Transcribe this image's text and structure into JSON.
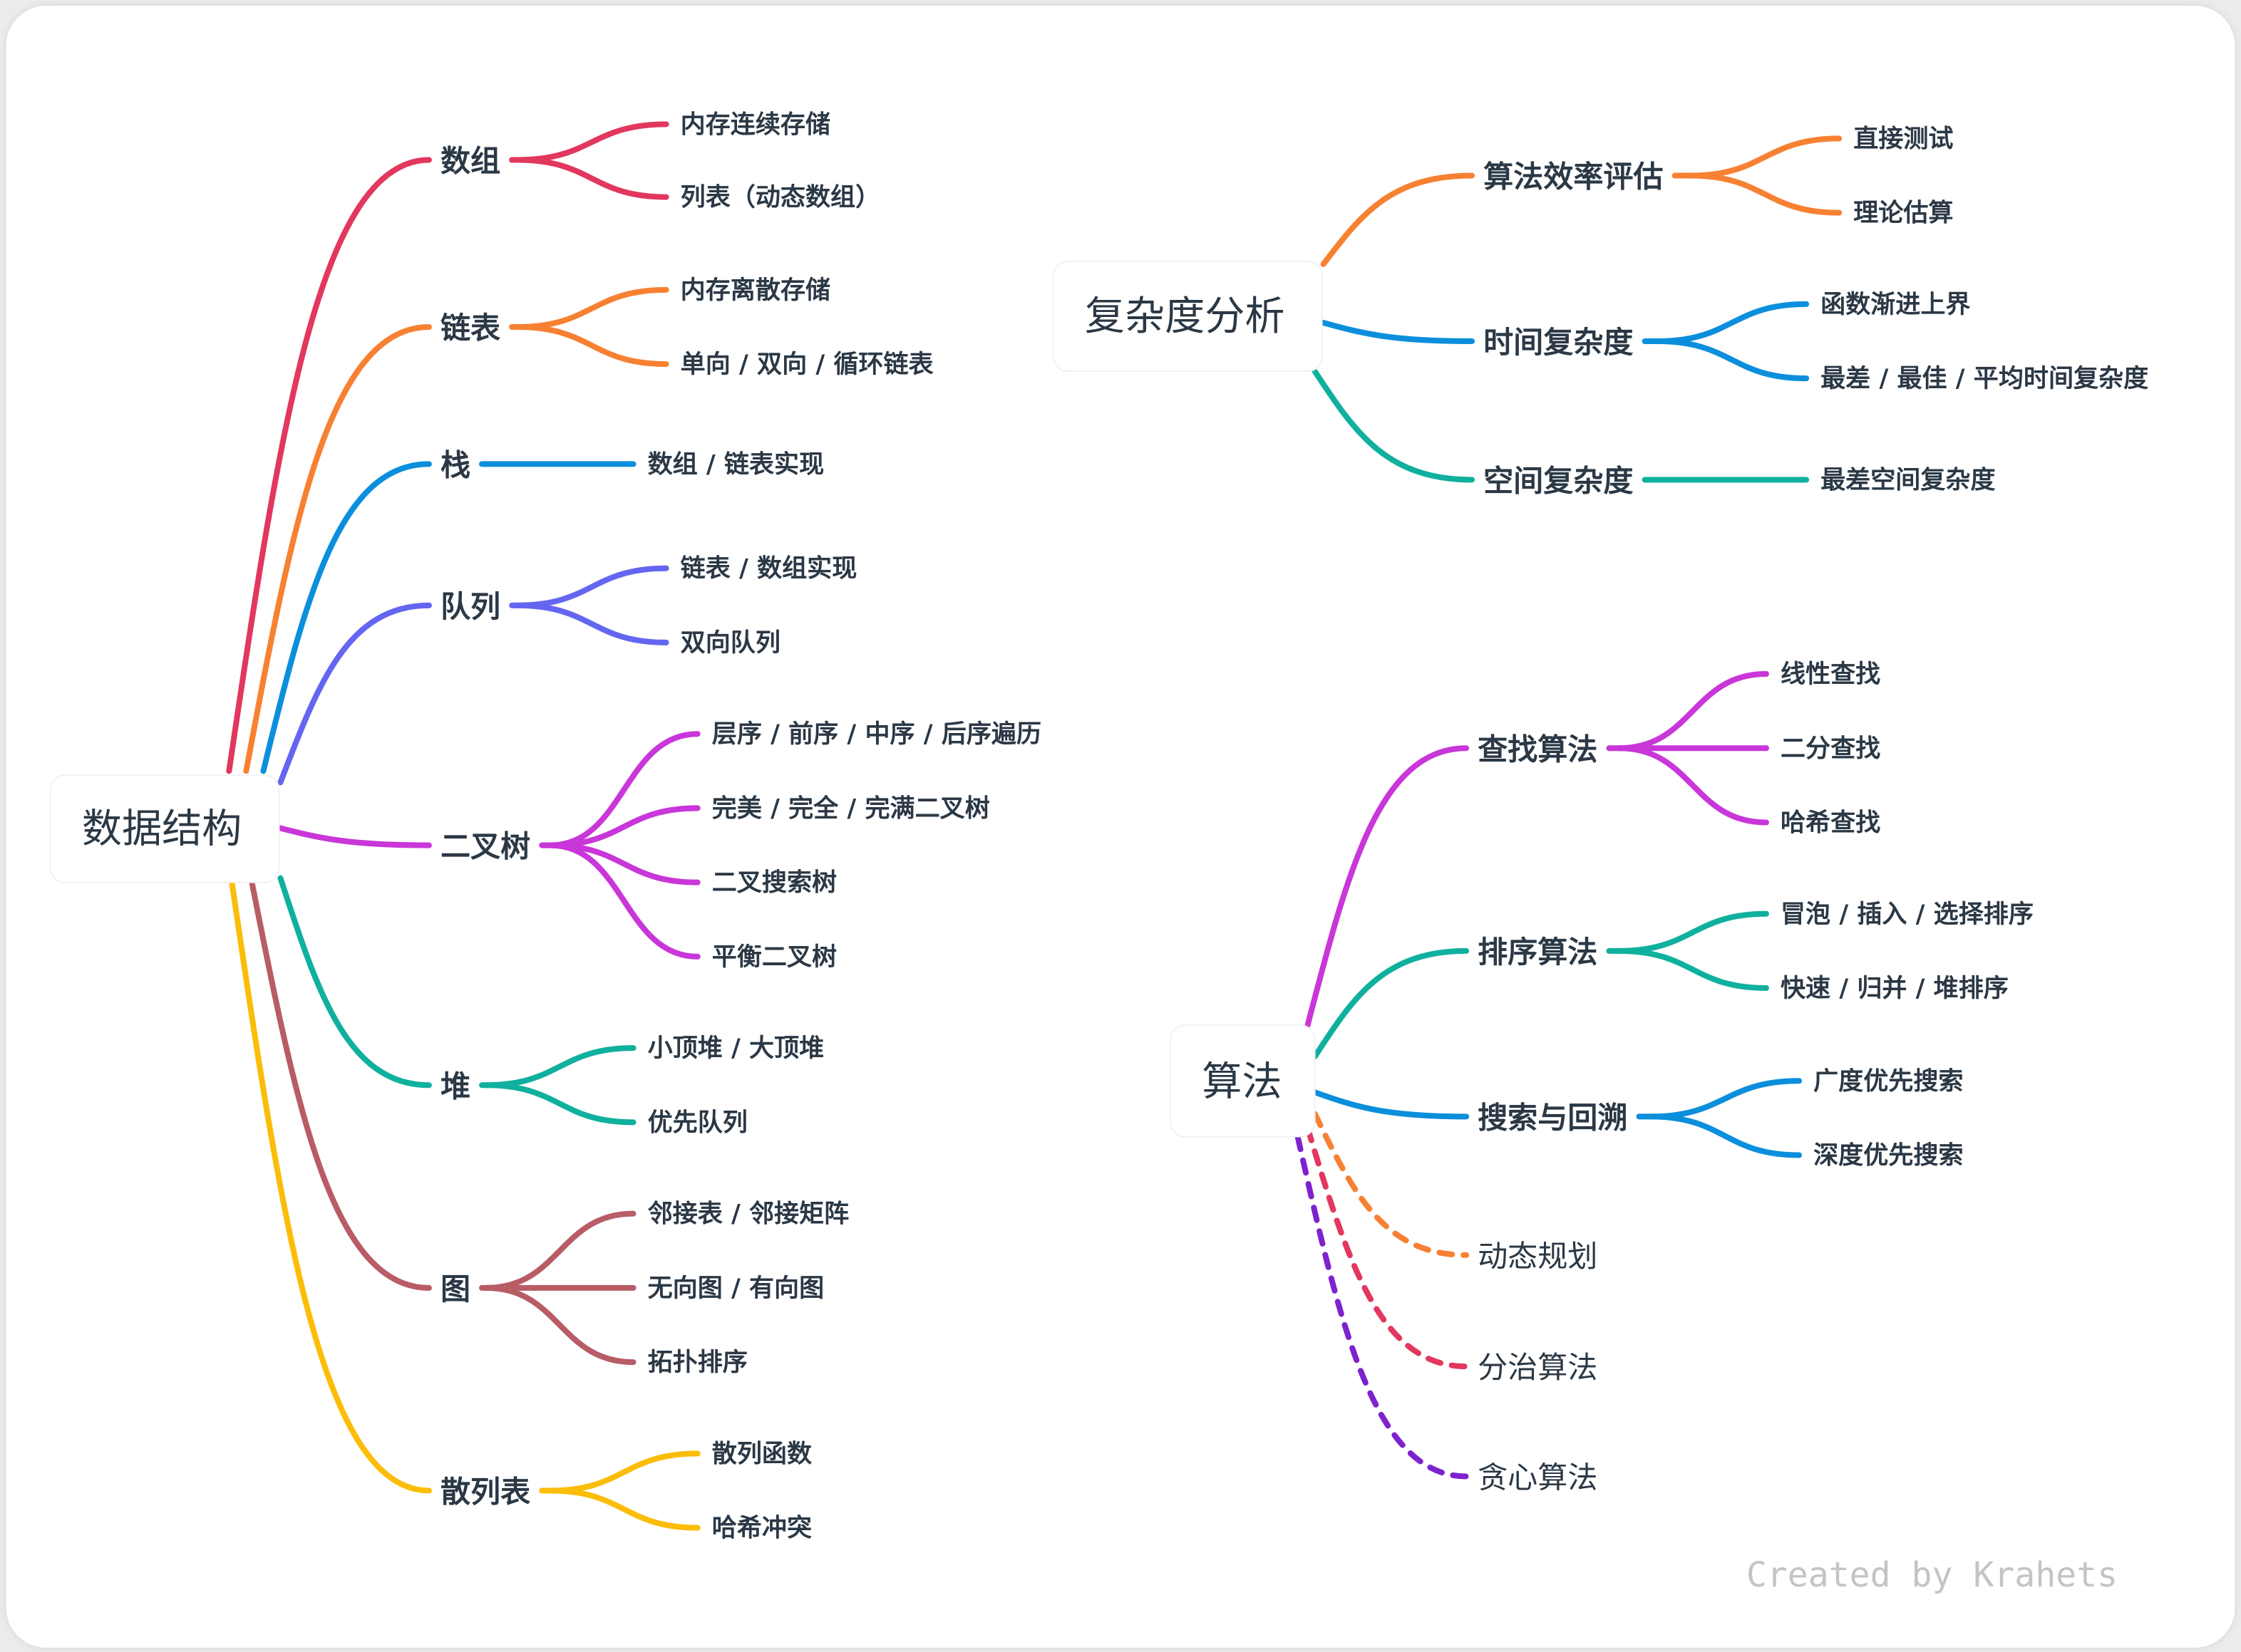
{
  "roots": [
    {
      "label": "数据结构",
      "children": [
        {
          "label": "数组",
          "color": "#e2375e",
          "children": [
            "内存连续存储",
            "列表（动态数组）"
          ]
        },
        {
          "label": "链表",
          "color": "#f78132",
          "children": [
            "内存离散存储",
            "单向 / 双向 / 循环链表"
          ]
        },
        {
          "label": "栈",
          "color": "#0b8fdc",
          "children": [
            "数组 / 链表实现"
          ]
        },
        {
          "label": "队列",
          "color": "#6466f1",
          "children": [
            "链表 / 数组实现",
            "双向队列"
          ]
        },
        {
          "label": "二叉树",
          "color": "#c936d9",
          "children": [
            "层序 / 前序 / 中序 / 后序遍历",
            "完美 / 完全 / 完满二叉树",
            "二叉搜索树",
            "平衡二叉树"
          ]
        },
        {
          "label": "堆",
          "color": "#10b09e",
          "children": [
            "小顶堆 / 大顶堆",
            "优先队列"
          ]
        },
        {
          "label": "图",
          "color": "#b85c66",
          "children": [
            "邻接表 / 邻接矩阵",
            "无向图 / 有向图",
            "拓扑排序"
          ]
        },
        {
          "label": "散列表",
          "color": "#fbbd08",
          "children": [
            "散列函数",
            "哈希冲突"
          ]
        }
      ]
    },
    {
      "label": "复杂度分析",
      "children": [
        {
          "label": "算法效率评估",
          "color": "#f78132",
          "children": [
            "直接测试",
            "理论估算"
          ]
        },
        {
          "label": "时间复杂度",
          "color": "#0b8fdc",
          "children": [
            "函数渐进上界",
            "最差 / 最佳 / 平均时间复杂度"
          ]
        },
        {
          "label": "空间复杂度",
          "color": "#10b09e",
          "children": [
            "最差空间复杂度"
          ]
        }
      ]
    },
    {
      "label": "算法",
      "children": [
        {
          "label": "查找算法",
          "color": "#c936d9",
          "children": [
            "线性查找",
            "二分查找",
            "哈希查找"
          ]
        },
        {
          "label": "排序算法",
          "color": "#10b09e",
          "children": [
            "冒泡 / 插入 / 选择排序",
            "快速 / 归并 / 堆排序"
          ]
        },
        {
          "label": "搜索与回溯",
          "color": "#0b8fdc",
          "children": [
            "广度优先搜索",
            "深度优先搜索"
          ]
        },
        {
          "label": "动态规划",
          "color": "#f78132",
          "line_style": "dashed",
          "children": []
        },
        {
          "label": "分治算法",
          "color": "#e2375e",
          "line_style": "dashed",
          "children": []
        },
        {
          "label": "贪心算法",
          "color": "#7e22ce",
          "line_style": "dashed",
          "children": []
        }
      ]
    }
  ],
  "watermark": "Created by Krahets"
}
